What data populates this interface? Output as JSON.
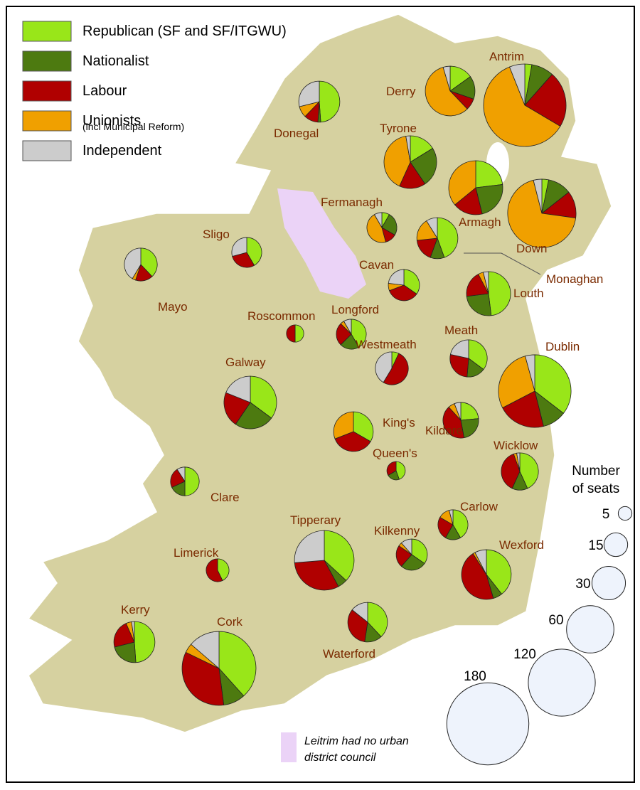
{
  "legend": {
    "items": [
      {
        "label": "Republican (SF and SF/ITGWU)",
        "color": "#99e619"
      },
      {
        "label": "Nationalist",
        "color": "#4d7a10"
      },
      {
        "label": "Labour",
        "color": "#b00000"
      },
      {
        "label": "Unionists",
        "color": "#f0a000"
      },
      {
        "label": "Independent",
        "color": "#cccccc"
      }
    ],
    "note": "(incl Municipal Reform)"
  },
  "size_legend": {
    "title": [
      "Number",
      "of seats"
    ],
    "values": [
      5,
      15,
      30,
      60,
      120,
      180
    ]
  },
  "counties": [
    {
      "name": "Donegal",
      "seats": [
        22,
        1,
        5,
        4,
        13
      ]
    },
    {
      "name": "Derry",
      "seats": [
        10,
        10,
        5,
        38,
        3
      ]
    },
    {
      "name": "Antrim",
      "seats": [
        5,
        16,
        40,
        110,
        11
      ]
    },
    {
      "name": "Tyrone",
      "seats": [
        12,
        18,
        12,
        30,
        2
      ]
    },
    {
      "name": "Armagh",
      "seats": [
        18,
        18,
        14,
        28,
        0
      ]
    },
    {
      "name": "Down",
      "seats": [
        4,
        14,
        16,
        86,
        5
      ]
    },
    {
      "name": "Fermanagh",
      "seats": [
        2,
        6,
        3,
        11,
        2
      ]
    },
    {
      "name": "Monaghan",
      "seats": [
        20,
        5,
        8,
        8,
        4
      ]
    },
    {
      "name": "Sligo",
      "seats": [
        10,
        0,
        7,
        0,
        7
      ]
    },
    {
      "name": "Mayo",
      "seats": [
        11,
        0,
        5,
        1,
        12
      ]
    },
    {
      "name": "Cavan",
      "seats": [
        9,
        0,
        9,
        2,
        6
      ]
    },
    {
      "name": "Louth",
      "seats": [
        25,
        13,
        10,
        2,
        2
      ]
    },
    {
      "name": "Roscommon",
      "seats": [
        4,
        0,
        4,
        0,
        0
      ]
    },
    {
      "name": "Longford",
      "seats": [
        10,
        5,
        6,
        1,
        2
      ]
    },
    {
      "name": "Westmeath",
      "seats": [
        2,
        0,
        15,
        0,
        12
      ]
    },
    {
      "name": "Meath",
      "seats": [
        13,
        6,
        10,
        0,
        8
      ]
    },
    {
      "name": "Dublin",
      "seats": [
        50,
        15,
        30,
        40,
        6
      ]
    },
    {
      "name": "Galway",
      "seats": [
        26,
        18,
        16,
        0,
        14
      ]
    },
    {
      "name": "King's",
      "seats": [
        14,
        0,
        15,
        13,
        0
      ]
    },
    {
      "name": "Kildare",
      "seats": [
        8,
        8,
        14,
        2,
        2
      ]
    },
    {
      "name": "Queen's",
      "seats": [
        4,
        2,
        3,
        0,
        0
      ]
    },
    {
      "name": "Wicklow",
      "seats": [
        16,
        5,
        14,
        1,
        1
      ]
    },
    {
      "name": "Clare",
      "seats": [
        11,
        4,
        5,
        0,
        2
      ]
    },
    {
      "name": "Carlow",
      "seats": [
        10,
        4,
        6,
        3,
        1
      ]
    },
    {
      "name": "Kilkenny",
      "seats": [
        9,
        7,
        6,
        1,
        3
      ]
    },
    {
      "name": "Limerick",
      "seats": [
        6,
        0,
        8,
        0,
        0
      ]
    },
    {
      "name": "Tipperary",
      "seats": [
        35,
        5,
        30,
        0,
        25
      ]
    },
    {
      "name": "Wexford",
      "seats": [
        26,
        4,
        30,
        1,
        5
      ]
    },
    {
      "name": "Kerry",
      "seats": [
        22,
        10,
        10,
        2,
        1
      ]
    },
    {
      "name": "Waterford",
      "seats": [
        16,
        6,
        14,
        0,
        6
      ]
    },
    {
      "name": "Cork",
      "seats": [
        56,
        14,
        50,
        6,
        20
      ]
    }
  ],
  "footnote": [
    "Leitrim had no urban",
    "district council"
  ]
}
